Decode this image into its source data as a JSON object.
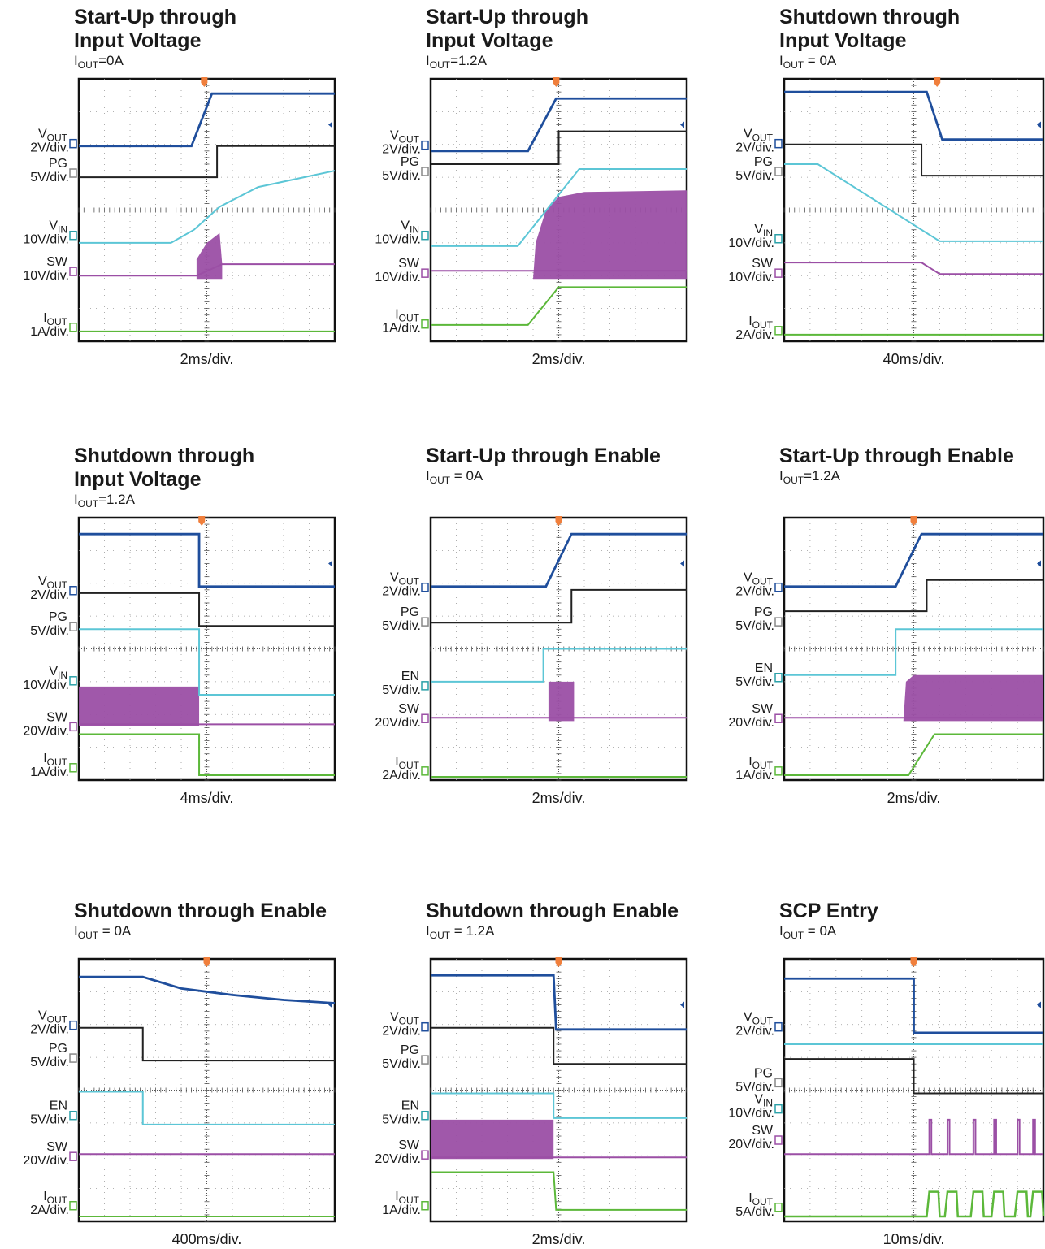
{
  "panels": [
    {
      "title": [
        "Start-Up through",
        "Input Voltage"
      ],
      "condition": {
        "base": "I",
        "sub": "OUT",
        "rest": "=0A"
      },
      "channels": [
        {
          "name": "V",
          "sub": "OUT",
          "scale": "2V/div."
        },
        {
          "name": "PG",
          "scale": "5V/div."
        },
        {
          "name": "V",
          "sub": "IN",
          "scale": "10V/div."
        },
        {
          "name": "SW",
          "scale": "10V/div."
        },
        {
          "name": "I",
          "sub": "OUT",
          "scale": "1A/div."
        }
      ],
      "timebase": "2ms/div."
    },
    {
      "title": [
        "Start-Up through",
        "Input Voltage"
      ],
      "condition": {
        "base": "I",
        "sub": "OUT",
        "rest": "=1.2A"
      },
      "channels": [
        {
          "name": "V",
          "sub": "OUT",
          "scale": "2V/div."
        },
        {
          "name": "PG",
          "scale": "5V/div."
        },
        {
          "name": "V",
          "sub": "IN",
          "scale": "10V/div."
        },
        {
          "name": "SW",
          "scale": "10V/div."
        },
        {
          "name": "I",
          "sub": "OUT",
          "scale": "1A/div."
        }
      ],
      "timebase": "2ms/div."
    },
    {
      "title": [
        "Shutdown through",
        "Input Voltage"
      ],
      "condition": {
        "base": "I",
        "sub": "OUT",
        "rest": " = 0A"
      },
      "channels": [
        {
          "name": "V",
          "sub": "OUT",
          "scale": "2V/div."
        },
        {
          "name": "PG",
          "scale": "5V/div."
        },
        {
          "name": "V",
          "sub": "IN",
          "scale": "10V/div."
        },
        {
          "name": "SW",
          "scale": "10V/div."
        },
        {
          "name": "I",
          "sub": "OUT",
          "scale": "2A/div."
        }
      ],
      "timebase": "40ms/div."
    },
    {
      "title": [
        "Shutdown through",
        "Input Voltage"
      ],
      "condition": {
        "base": "I",
        "sub": "OUT",
        "rest": "=1.2A"
      },
      "channels": [
        {
          "name": "V",
          "sub": "OUT",
          "scale": "2V/div."
        },
        {
          "name": "PG",
          "scale": "5V/div."
        },
        {
          "name": "V",
          "sub": "IN",
          "scale": "10V/div."
        },
        {
          "name": "SW",
          "scale": "20V/div."
        },
        {
          "name": "I",
          "sub": "OUT",
          "scale": "1A/div."
        }
      ],
      "timebase": "4ms/div."
    },
    {
      "title": [
        "Start-Up through Enable"
      ],
      "condition": {
        "base": "I",
        "sub": "OUT",
        "rest": " = 0A"
      },
      "channels": [
        {
          "name": "V",
          "sub": "OUT",
          "scale": "2V/div."
        },
        {
          "name": "PG",
          "scale": "5V/div."
        },
        {
          "name": "EN",
          "scale": "5V/div."
        },
        {
          "name": "SW",
          "scale": "20V/div."
        },
        {
          "name": "I",
          "sub": "OUT",
          "scale": "2A/div."
        }
      ],
      "timebase": "2ms/div."
    },
    {
      "title": [
        "Start-Up through Enable"
      ],
      "condition": {
        "base": "I",
        "sub": "OUT",
        "rest": "=1.2A"
      },
      "channels": [
        {
          "name": "V",
          "sub": "OUT",
          "scale": "2V/div."
        },
        {
          "name": "PG",
          "scale": "5V/div."
        },
        {
          "name": "EN",
          "scale": "5V/div."
        },
        {
          "name": "SW",
          "scale": "20V/div."
        },
        {
          "name": "I",
          "sub": "OUT",
          "scale": "1A/div."
        }
      ],
      "timebase": "2ms/div."
    },
    {
      "title": [
        "Shutdown through Enable"
      ],
      "condition": {
        "base": "I",
        "sub": "OUT",
        "rest": " = 0A"
      },
      "channels": [
        {
          "name": "V",
          "sub": "OUT",
          "scale": "2V/div."
        },
        {
          "name": "PG",
          "scale": "5V/div."
        },
        {
          "name": "EN",
          "scale": "5V/div."
        },
        {
          "name": "SW",
          "scale": "20V/div."
        },
        {
          "name": "I",
          "sub": "OUT",
          "scale": "2A/div."
        }
      ],
      "timebase": "400ms/div."
    },
    {
      "title": [
        "Shutdown through Enable"
      ],
      "condition": {
        "base": "I",
        "sub": "OUT",
        "rest": " = 1.2A"
      },
      "channels": [
        {
          "name": "V",
          "sub": "OUT",
          "scale": "2V/div."
        },
        {
          "name": "PG",
          "scale": "5V/div."
        },
        {
          "name": "EN",
          "scale": "5V/div."
        },
        {
          "name": "SW",
          "scale": "20V/div."
        },
        {
          "name": "I",
          "sub": "OUT",
          "scale": "1A/div."
        }
      ],
      "timebase": "2ms/div."
    },
    {
      "title": [
        "SCP Entry"
      ],
      "condition": {
        "base": "I",
        "sub": "OUT",
        "rest": " = 0A"
      },
      "channels": [
        {
          "name": "V",
          "sub": "OUT",
          "scale": "2V/div."
        },
        {
          "name": "PG",
          "scale": "5V/div."
        },
        {
          "name": "V",
          "sub": "IN",
          "scale": "10V/div."
        },
        {
          "name": "SW",
          "scale": "20V/div."
        },
        {
          "name": "I",
          "sub": "OUT",
          "scale": "5A/div."
        }
      ],
      "timebase": "10ms/div."
    }
  ]
}
